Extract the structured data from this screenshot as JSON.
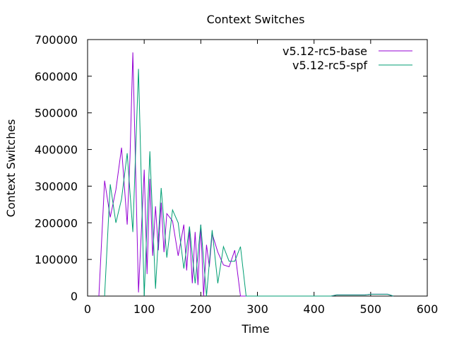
{
  "chart_data": {
    "type": "line",
    "title": "Context Switches",
    "xlabel": "Time",
    "ylabel": "Context Switches",
    "xlim": [
      0,
      600
    ],
    "ylim": [
      0,
      700000
    ],
    "xticks": [
      0,
      100,
      200,
      300,
      400,
      500,
      600
    ],
    "yticks": [
      0,
      100000,
      200000,
      300000,
      400000,
      500000,
      600000,
      700000
    ],
    "xtick_labels": [
      "0",
      "100",
      "200",
      "300",
      "400",
      "500",
      "600"
    ],
    "ytick_labels": [
      "0",
      "100000",
      "200000",
      "300000",
      "400000",
      "500000",
      "600000",
      "700000"
    ],
    "grid": false,
    "legend_position": "top-right",
    "series": [
      {
        "name": "v5.12-rc5-base",
        "color": "#9400d3",
        "x": [
          20,
          30,
          40,
          50,
          60,
          70,
          75,
          80,
          90,
          100,
          105,
          110,
          115,
          120,
          125,
          130,
          135,
          140,
          150,
          160,
          170,
          175,
          180,
          185,
          190,
          195,
          200,
          205,
          210,
          215,
          220,
          230,
          240,
          250,
          260,
          270,
          280,
          420,
          430,
          440,
          450,
          460,
          470,
          480,
          490,
          500,
          510,
          520,
          530,
          540
        ],
        "y": [
          0,
          315000,
          215000,
          290000,
          405000,
          195000,
          380000,
          665000,
          10000,
          345000,
          60000,
          320000,
          110000,
          245000,
          125000,
          255000,
          120000,
          225000,
          205000,
          110000,
          195000,
          70000,
          180000,
          35000,
          175000,
          30000,
          195000,
          0,
          140000,
          80000,
          170000,
          120000,
          85000,
          80000,
          125000,
          0,
          0,
          0,
          0,
          3000,
          3000,
          3000,
          3000,
          3000,
          3000,
          5000,
          5000,
          5000,
          5000,
          0
        ]
      },
      {
        "name": "v5.12-rc5-spf",
        "color": "#009e73",
        "x": [
          30,
          40,
          50,
          60,
          70,
          80,
          90,
          100,
          110,
          120,
          130,
          140,
          150,
          160,
          170,
          180,
          190,
          200,
          210,
          220,
          230,
          240,
          250,
          260,
          270,
          280,
          420,
          430,
          440,
          450,
          460,
          470,
          480,
          490,
          500,
          510,
          520,
          530,
          540
        ],
        "y": [
          0,
          305000,
          200000,
          265000,
          390000,
          175000,
          620000,
          0,
          395000,
          20000,
          295000,
          105000,
          235000,
          200000,
          75000,
          190000,
          35000,
          195000,
          0,
          180000,
          35000,
          135000,
          95000,
          95000,
          135000,
          0,
          0,
          0,
          3000,
          3000,
          3000,
          3000,
          3000,
          3000,
          5000,
          5000,
          5000,
          5000,
          0
        ]
      }
    ]
  }
}
